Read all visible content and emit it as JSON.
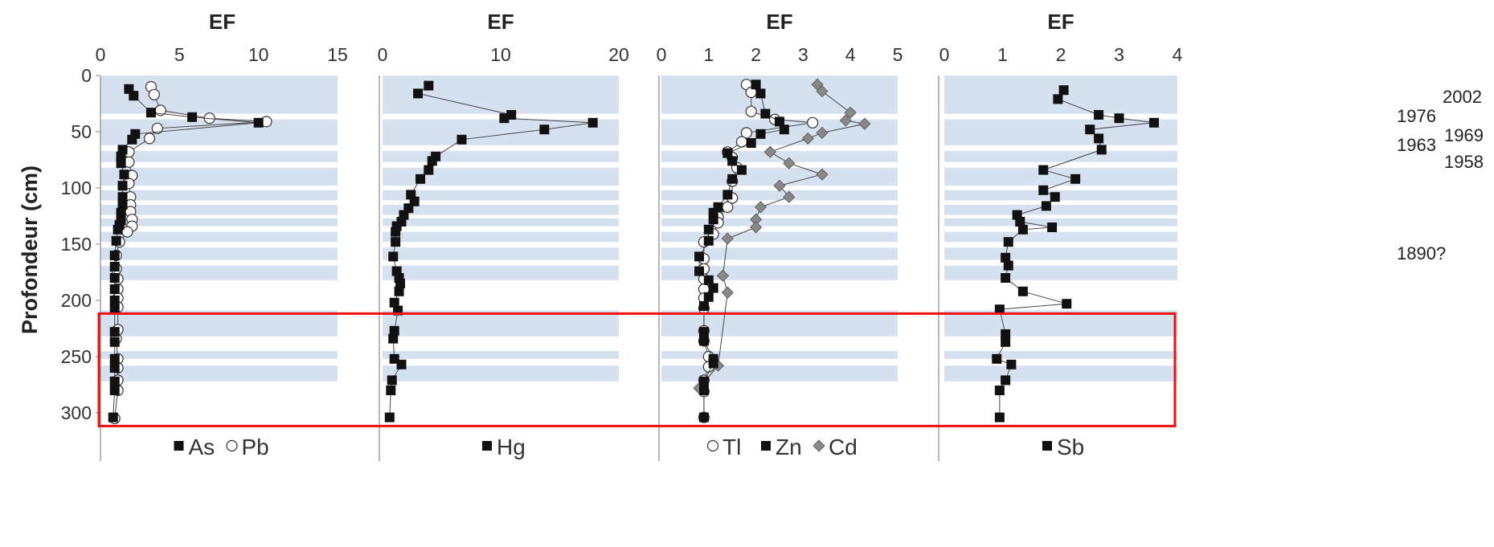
{
  "chart_data": {
    "type": "scatter",
    "ylabel": "Profondeur (cm)",
    "ylim": [
      0,
      310
    ],
    "yticks": [
      0,
      50,
      100,
      150,
      200,
      250,
      300
    ],
    "y_inverted": true,
    "shaded_bands_cm": [
      [
        0,
        34
      ],
      [
        39,
        62
      ],
      [
        67,
        77
      ],
      [
        82,
        98
      ],
      [
        102,
        111
      ],
      [
        115,
        124
      ],
      [
        127,
        134
      ],
      [
        139,
        148
      ],
      [
        153,
        164
      ],
      [
        169,
        182
      ],
      [
        209,
        232
      ],
      [
        245,
        252
      ],
      [
        258,
        272
      ]
    ],
    "highlight_box_cm": [
      211,
      311
    ],
    "colors": {
      "band": "#d6e1f0",
      "highlight": "#ee1111",
      "square": "#111111",
      "circle_fill": "#ffffff",
      "diamond": "#888888"
    },
    "year_labels": [
      {
        "label": "2002",
        "depth": 20
      },
      {
        "label": "1976",
        "depth": 36
      },
      {
        "label": "1969",
        "depth": 48
      },
      {
        "label": "1963",
        "depth": 55
      },
      {
        "label": "1958",
        "depth": 67
      },
      {
        "label": "1890?",
        "depth": 158
      }
    ],
    "panels": [
      {
        "id": "as-pb",
        "title": "EF",
        "xlim": [
          0,
          15
        ],
        "xticks": [
          "0",
          "5",
          "10",
          "15"
        ],
        "series": [
          {
            "name": "As",
            "marker": "square",
            "points": [
              [
                1.8,
                12
              ],
              [
                2.1,
                18
              ],
              [
                3.2,
                33
              ],
              [
                5.8,
                37
              ],
              [
                10,
                42
              ],
              [
                2.2,
                52
              ],
              [
                2.0,
                57
              ],
              [
                1.4,
                66
              ],
              [
                1.3,
                72
              ],
              [
                1.3,
                78
              ],
              [
                1.5,
                88
              ],
              [
                1.4,
                98
              ],
              [
                1.4,
                108
              ],
              [
                1.4,
                115
              ],
              [
                1.3,
                122
              ],
              [
                1.3,
                129
              ],
              [
                1.2,
                133
              ],
              [
                1.1,
                137
              ],
              [
                1.0,
                147
              ],
              [
                0.9,
                160
              ],
              [
                0.9,
                170
              ],
              [
                0.9,
                180
              ],
              [
                0.9,
                190
              ],
              [
                0.9,
                200
              ],
              [
                0.9,
                208
              ],
              [
                0.9,
                228
              ],
              [
                0.9,
                237
              ],
              [
                0.9,
                252
              ],
              [
                0.9,
                260
              ],
              [
                0.9,
                272
              ],
              [
                0.9,
                280
              ],
              [
                0.8,
                304
              ]
            ]
          },
          {
            "name": "Pb",
            "marker": "circle",
            "points": [
              [
                3.2,
                10
              ],
              [
                3.4,
                17
              ],
              [
                3.8,
                31
              ],
              [
                6.9,
                38
              ],
              [
                10.5,
                41
              ],
              [
                3.6,
                47
              ],
              [
                3.1,
                56
              ],
              [
                1.8,
                68
              ],
              [
                1.8,
                77
              ],
              [
                2.0,
                89
              ],
              [
                1.8,
                96
              ],
              [
                1.9,
                108
              ],
              [
                1.9,
                115
              ],
              [
                1.9,
                121
              ],
              [
                2.0,
                128
              ],
              [
                2.0,
                134
              ],
              [
                1.7,
                139
              ],
              [
                1.2,
                148
              ],
              [
                1.0,
                160
              ],
              [
                1.0,
                172
              ],
              [
                1.1,
                181
              ],
              [
                1.1,
                190
              ],
              [
                1.1,
                198
              ],
              [
                1.1,
                206
              ],
              [
                1.1,
                226
              ],
              [
                1.0,
                234
              ],
              [
                1.1,
                252
              ],
              [
                1.1,
                260
              ],
              [
                1.1,
                271
              ],
              [
                1.1,
                280
              ],
              [
                0.9,
                305
              ]
            ]
          }
        ],
        "legend": [
          {
            "marker": "square",
            "label": "As"
          },
          {
            "marker": "circle",
            "label": "Pb"
          }
        ]
      },
      {
        "id": "hg",
        "title": "EF",
        "xlim": [
          0,
          20
        ],
        "xticks": [
          "0",
          "10",
          "20"
        ],
        "series": [
          {
            "name": "Hg",
            "marker": "square",
            "points": [
              [
                3.9,
                9
              ],
              [
                3.0,
                16
              ],
              [
                10.9,
                35
              ],
              [
                10.3,
                38
              ],
              [
                17.8,
                42
              ],
              [
                13.7,
                48
              ],
              [
                6.7,
                57
              ],
              [
                4.5,
                72
              ],
              [
                4.2,
                76
              ],
              [
                3.9,
                84
              ],
              [
                3.2,
                92
              ],
              [
                2.4,
                106
              ],
              [
                2.7,
                112
              ],
              [
                2.2,
                118
              ],
              [
                1.8,
                124
              ],
              [
                1.6,
                130
              ],
              [
                1.2,
                134
              ],
              [
                1.1,
                139
              ],
              [
                1.1,
                148
              ],
              [
                0.9,
                161
              ],
              [
                1.2,
                174
              ],
              [
                1.4,
                180
              ],
              [
                1.5,
                185
              ],
              [
                1.4,
                192
              ],
              [
                1.0,
                202
              ],
              [
                1.3,
                209
              ],
              [
                1.0,
                227
              ],
              [
                0.9,
                234
              ],
              [
                1.0,
                252
              ],
              [
                1.6,
                257
              ],
              [
                0.8,
                271
              ],
              [
                0.7,
                280
              ],
              [
                0.6,
                304
              ]
            ]
          }
        ],
        "legend": [
          {
            "marker": "square",
            "label": "Hg"
          }
        ]
      },
      {
        "id": "tl-zn-cd",
        "title": "EF",
        "xlim": [
          0,
          5
        ],
        "xticks": [
          "0",
          "1",
          "2",
          "3",
          "4",
          "5"
        ],
        "series": [
          {
            "name": "Tl",
            "marker": "circle",
            "points": [
              [
                1.8,
                8
              ],
              [
                1.9,
                15
              ],
              [
                1.9,
                32
              ],
              [
                2.4,
                39
              ],
              [
                3.2,
                42
              ],
              [
                1.8,
                51
              ],
              [
                1.7,
                59
              ],
              [
                1.4,
                68
              ],
              [
                1.5,
                73
              ],
              [
                1.6,
                82
              ],
              [
                1.5,
                94
              ],
              [
                1.5,
                109
              ],
              [
                1.4,
                117
              ],
              [
                1.2,
                126
              ],
              [
                1.2,
                131
              ],
              [
                1.1,
                141
              ],
              [
                0.9,
                148
              ],
              [
                0.9,
                163
              ],
              [
                0.9,
                172
              ],
              [
                0.9,
                181
              ],
              [
                0.9,
                190
              ],
              [
                0.9,
                198
              ],
              [
                0.9,
                207
              ],
              [
                0.9,
                227
              ],
              [
                0.9,
                236
              ],
              [
                1.0,
                250
              ],
              [
                1.0,
                259
              ],
              [
                0.9,
                271
              ],
              [
                0.9,
                281
              ],
              [
                0.9,
                304
              ]
            ]
          },
          {
            "name": "Zn",
            "marker": "square",
            "points": [
              [
                2.0,
                8
              ],
              [
                2.1,
                16
              ],
              [
                2.2,
                34
              ],
              [
                2.5,
                41
              ],
              [
                2.6,
                48
              ],
              [
                2.1,
                52
              ],
              [
                1.9,
                60
              ],
              [
                1.4,
                69
              ],
              [
                1.5,
                76
              ],
              [
                1.7,
                84
              ],
              [
                1.5,
                92
              ],
              [
                1.4,
                106
              ],
              [
                1.2,
                117
              ],
              [
                1.1,
                122
              ],
              [
                1.1,
                128
              ],
              [
                1.0,
                137
              ],
              [
                1.0,
                147
              ],
              [
                0.8,
                161
              ],
              [
                0.8,
                174
              ],
              [
                1.0,
                182
              ],
              [
                1.1,
                189
              ],
              [
                1.0,
                197
              ],
              [
                0.9,
                205
              ],
              [
                0.9,
                228
              ],
              [
                0.9,
                236
              ],
              [
                1.1,
                252
              ],
              [
                1.1,
                256
              ],
              [
                0.9,
                272
              ],
              [
                0.9,
                280
              ],
              [
                0.9,
                304
              ]
            ]
          },
          {
            "name": "Cd",
            "marker": "diamond",
            "points": [
              [
                3.3,
                8
              ],
              [
                3.4,
                14
              ],
              [
                4.0,
                33
              ],
              [
                3.9,
                40
              ],
              [
                4.3,
                43
              ],
              [
                3.4,
                51
              ],
              [
                3.1,
                56
              ],
              [
                2.3,
                68
              ],
              [
                2.7,
                78
              ],
              [
                3.4,
                88
              ],
              [
                2.5,
                98
              ],
              [
                2.7,
                108
              ],
              [
                2.1,
                117
              ],
              [
                2.0,
                128
              ],
              [
                2.0,
                135
              ],
              [
                1.4,
                145
              ],
              [
                1.3,
                178
              ],
              [
                1.4,
                193
              ],
              [
                1.2,
                258
              ],
              [
                0.8,
                278
              ]
            ]
          }
        ],
        "legend": [
          {
            "marker": "circle",
            "label": "Tl"
          },
          {
            "marker": "square",
            "label": "Zn"
          },
          {
            "marker": "diamond",
            "label": "Cd"
          }
        ]
      },
      {
        "id": "sb",
        "title": "EF",
        "xlim": [
          0,
          4
        ],
        "xticks": [
          "0",
          "1",
          "2",
          "3",
          "4"
        ],
        "series": [
          {
            "name": "Sb",
            "marker": "square",
            "points": [
              [
                2.05,
                13
              ],
              [
                1.95,
                21
              ],
              [
                2.65,
                35
              ],
              [
                3.0,
                38
              ],
              [
                3.6,
                42
              ],
              [
                2.5,
                48
              ],
              [
                2.65,
                56
              ],
              [
                2.7,
                66
              ],
              [
                1.7,
                84
              ],
              [
                2.25,
                92
              ],
              [
                1.7,
                102
              ],
              [
                1.9,
                108
              ],
              [
                1.75,
                116
              ],
              [
                1.25,
                124
              ],
              [
                1.3,
                130
              ],
              [
                1.85,
                135
              ],
              [
                1.35,
                137
              ],
              [
                1.1,
                148
              ],
              [
                1.05,
                162
              ],
              [
                1.1,
                169
              ],
              [
                1.05,
                180
              ],
              [
                1.35,
                192
              ],
              [
                2.1,
                203
              ],
              [
                0.95,
                208
              ],
              [
                1.05,
                230
              ],
              [
                1.05,
                237
              ],
              [
                0.9,
                252
              ],
              [
                1.15,
                257
              ],
              [
                1.05,
                271
              ],
              [
                0.95,
                280
              ],
              [
                0.95,
                304
              ]
            ]
          }
        ],
        "legend": [
          {
            "marker": "square",
            "label": "Sb"
          }
        ]
      }
    ]
  }
}
